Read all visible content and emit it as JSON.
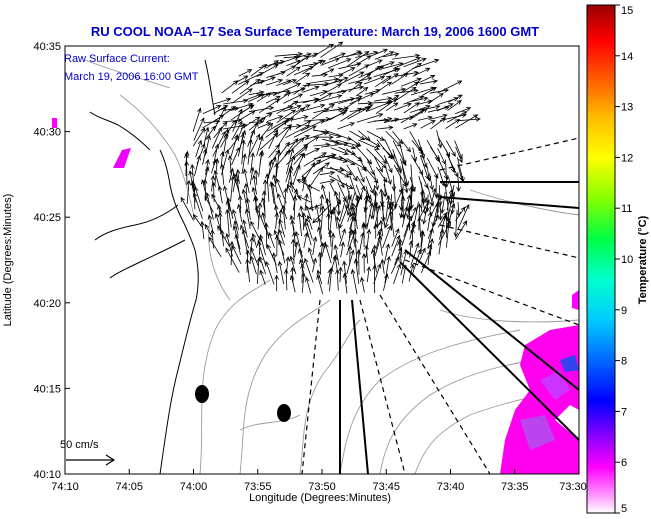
{
  "title": "RU COOL  NOAA–17  Sea Surface Temperature:  March 19, 2006 1600 GMT",
  "legend": {
    "line1": "Raw Surface Current:",
    "line2": "March 19, 2006 16:00 GMT"
  },
  "scale_bar": {
    "label": "50 cm/s"
  },
  "x_axis": {
    "label": "Longitude (Degrees:Minutes)",
    "ticks": [
      "74:10",
      "74:05",
      "74:00",
      "73:55",
      "73:50",
      "73:45",
      "73:40",
      "73:35",
      "73:30"
    ]
  },
  "y_axis": {
    "label": "Latitude (Degrees:Minutes)",
    "ticks": [
      "40:35",
      "40:30",
      "40:25",
      "40:20",
      "40:15",
      "40:10"
    ]
  },
  "colorbar": {
    "label": "Temperature (°C)",
    "min": 5,
    "max": 15,
    "ticks": [
      "15",
      "14",
      "13",
      "12",
      "11",
      "10",
      "9",
      "8",
      "7",
      "6",
      "5"
    ]
  },
  "colors": {
    "title": "#0000cc",
    "vectors": "#000000",
    "coast": "#000000",
    "bathymetry": "#9a9a9a",
    "sst_patch": "#ff00ff"
  }
}
